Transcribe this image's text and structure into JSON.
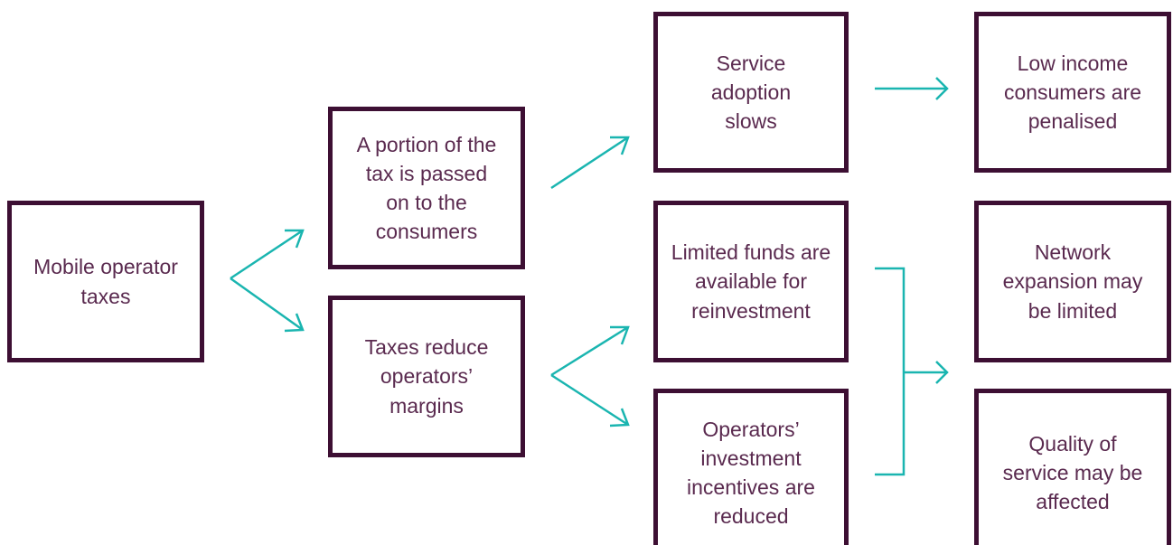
{
  "nodes": [
    {
      "label": "Mobile operator taxes"
    },
    {
      "label": "A portion of the tax is passed on to the consumers"
    },
    {
      "label": "Taxes reduce operators’ margins"
    },
    {
      "label": "Service adoption slows"
    },
    {
      "label": "Limited funds are available for reinvestment"
    },
    {
      "label": "Operators’ investment incentives are reduced"
    },
    {
      "label": "Low income consumers are penalised"
    },
    {
      "label": "Network expansion may be limited"
    },
    {
      "label": "Quality of service may be affected"
    }
  ]
}
